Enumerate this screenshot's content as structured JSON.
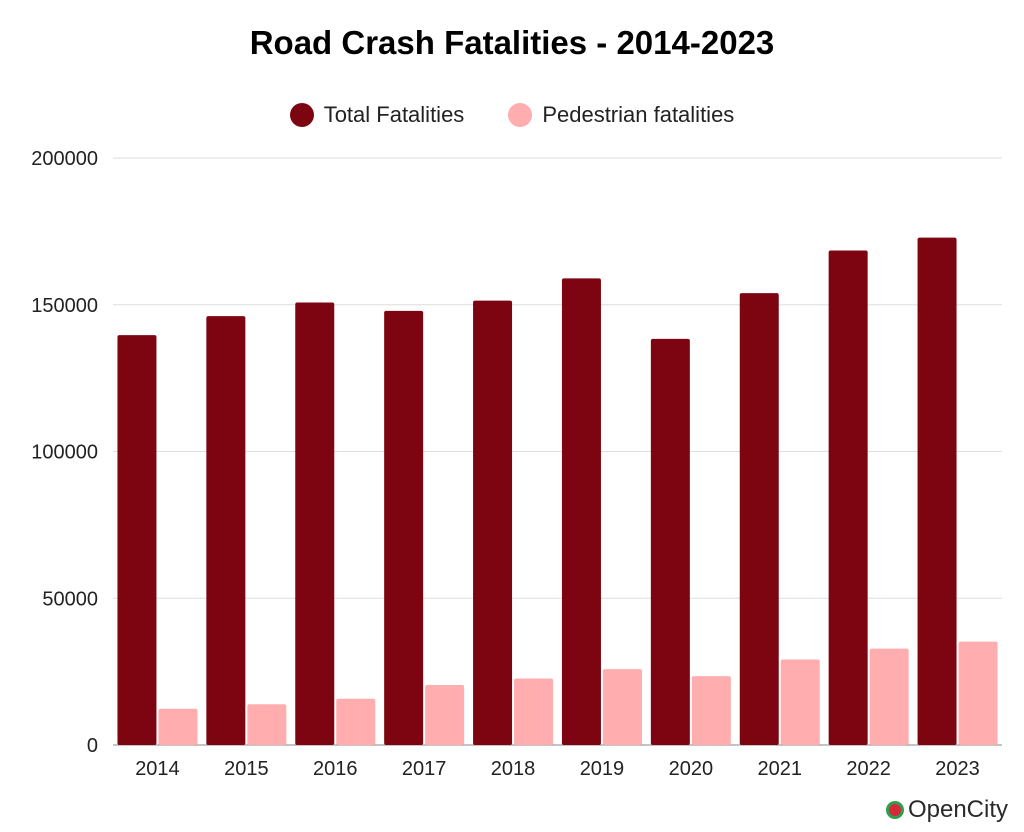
{
  "chart_data": {
    "type": "bar",
    "title": "Road Crash Fatalities - 2014-2023",
    "categories": [
      "2014",
      "2015",
      "2016",
      "2017",
      "2018",
      "2019",
      "2020",
      "2021",
      "2022",
      "2023"
    ],
    "series": [
      {
        "name": "Total Fatalities",
        "color": "#7d0512",
        "values": [
          139671,
          146133,
          150785,
          147913,
          151417,
          158984,
          138383,
          153972,
          168491,
          172890
        ]
      },
      {
        "name": "Pedestrian fatalities",
        "color": "#ffadae",
        "values": [
          12330,
          13894,
          15746,
          20457,
          22656,
          25858,
          23483,
          29124,
          32825,
          35221
        ]
      }
    ],
    "yticks": [
      "0",
      "50000",
      "100000",
      "150000",
      "200000"
    ],
    "ylim": [
      0,
      200000
    ],
    "grid": true,
    "legend": "top-center"
  },
  "brand": {
    "logo_icon": "opencity-logo-icon",
    "text": "OpenCity"
  }
}
